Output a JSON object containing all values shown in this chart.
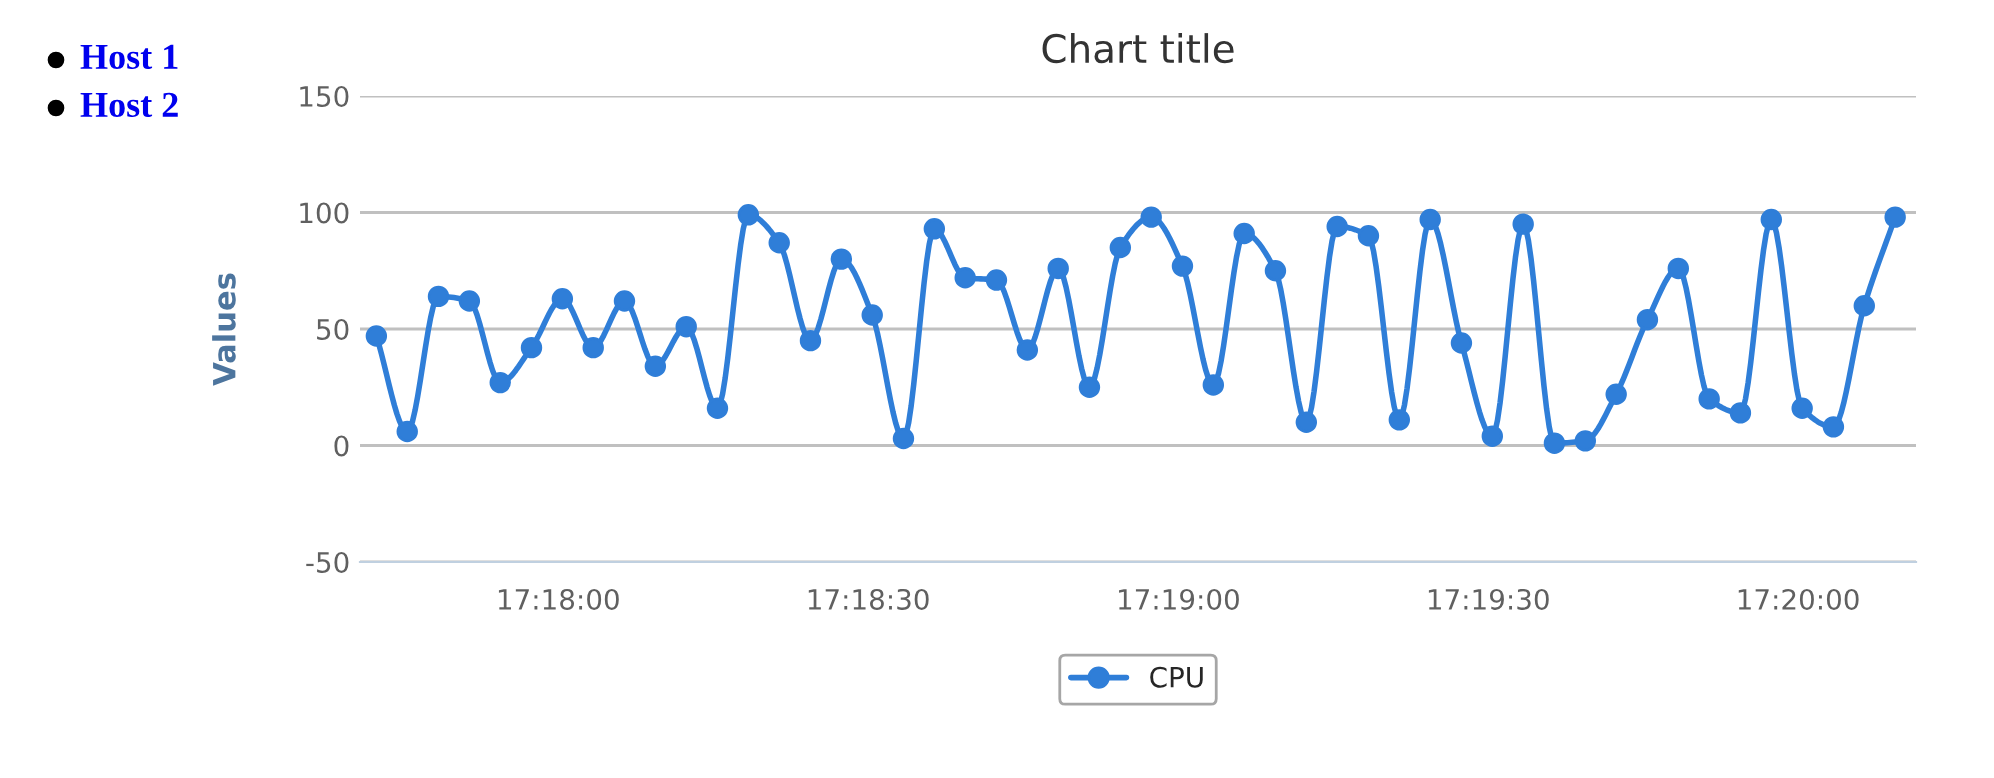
{
  "chart_data": {
    "type": "line",
    "title": "Chart title",
    "ylabel": "Values",
    "annotations": [
      "Host 1",
      "Host 2"
    ],
    "x": [
      17.29511,
      17.29594,
      17.29678,
      17.29761,
      17.29844,
      17.29928,
      17.30011,
      17.30094,
      17.30178,
      17.30261,
      17.30344,
      17.30428,
      17.30511,
      17.30594,
      17.30678,
      17.30761,
      17.30844,
      17.30928,
      17.31011,
      17.31094,
      17.31178,
      17.31261,
      17.31344,
      17.31428,
      17.31511,
      17.31594,
      17.31678,
      17.31761,
      17.31844,
      17.31928,
      17.32011,
      17.32094,
      17.32178,
      17.32261,
      17.32344,
      17.32428,
      17.32511,
      17.32594,
      17.32678,
      17.32761,
      17.32844,
      17.32928,
      17.33011,
      17.33094,
      17.33178,
      17.33261,
      17.33344,
      17.33428,
      17.33511,
      17.33594
    ],
    "series": [
      {
        "name": "CPU",
        "color": "#2f7ed8",
        "values": [
          47,
          6,
          64,
          62,
          27,
          42,
          63,
          42,
          62,
          34,
          51,
          16,
          99,
          87,
          45,
          80,
          56,
          3,
          93,
          72,
          71,
          41,
          76,
          25,
          85,
          98,
          77,
          26,
          91,
          75,
          10,
          94,
          90,
          11,
          97,
          44,
          4,
          95,
          1,
          2,
          22,
          54,
          76,
          20,
          14,
          97,
          16,
          8,
          60,
          98
        ]
      }
    ],
    "xlim": [
      17.29467,
      17.3365
    ],
    "xticks": [
      {
        "value": 17.3,
        "label": "17:18:00"
      },
      {
        "value": 17.30833,
        "label": "17:18:30"
      },
      {
        "value": 17.31667,
        "label": "17:19:00"
      },
      {
        "value": 17.325,
        "label": "17:19:30"
      },
      {
        "value": 17.33333,
        "label": "17:20:00"
      }
    ],
    "ylim": [
      -50,
      150
    ],
    "yticks": [
      -50,
      0,
      50,
      100,
      150
    ],
    "grid": "y",
    "legend": "bottom",
    "marker": "circle",
    "line_style": "solid"
  }
}
